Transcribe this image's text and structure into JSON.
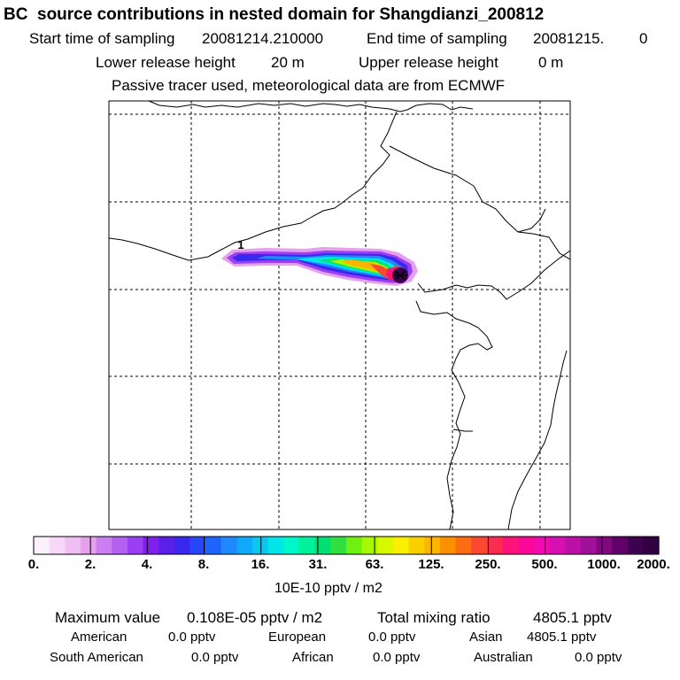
{
  "header": {
    "title": "BC  source contributions in nested domain for Shangdianzi_200812",
    "start_label": "Start time of sampling",
    "start_value": "20081214.210000",
    "end_label": "End time of sampling",
    "end_value": "20081215.",
    "end_suffix": "0",
    "lower_label": "Lower release height",
    "lower_value": "20 m",
    "upper_label": "Upper release height",
    "upper_value": "0 m",
    "tracer_note": "Passive tracer used, meteorological data are from ECMWF"
  },
  "map": {
    "marker_label": "1"
  },
  "colorbar": {
    "colors": [
      "#fcf0fc",
      "#f7d8f8",
      "#efbff3",
      "#e6a0ee",
      "#c97ff0",
      "#b460f2",
      "#9a3ff2",
      "#8020ee",
      "#5a20e8",
      "#3a28f0",
      "#2846f8",
      "#1e64fc",
      "#1e88fc",
      "#10a8f8",
      "#08c8f0",
      "#00e6e8",
      "#00f8c8",
      "#00f09c",
      "#00e070",
      "#30e040",
      "#70f010",
      "#a8f800",
      "#d8f800",
      "#f8f000",
      "#fcd000",
      "#fcb400",
      "#fc9000",
      "#fc6c10",
      "#fc4830",
      "#fc2c50",
      "#fc1478",
      "#fc0898",
      "#f00cb0",
      "#d810b0",
      "#bc10a8",
      "#a01098",
      "#800880",
      "#600068",
      "#400050",
      "#300040"
    ],
    "tick_labels": [
      "0.",
      "2.",
      "4.",
      "8.",
      "16.",
      "31.",
      "63.",
      "125.",
      "250.",
      "500.",
      "1000.",
      "2000."
    ],
    "unit": "10E-10 pptv / m2"
  },
  "footer": {
    "max_label": "Maximum value",
    "max_value": "0.108E-05 pptv / m2",
    "total_label": "Total mixing ratio",
    "total_value": "4805.1 pptv",
    "regions": [
      {
        "name": "American",
        "value": "0.0 pptv"
      },
      {
        "name": "European",
        "value": "0.0 pptv"
      },
      {
        "name": "Asian",
        "value": "4805.1 pptv"
      },
      {
        "name": "South American",
        "value": "0.0 pptv"
      },
      {
        "name": "African",
        "value": "0.0 pptv"
      },
      {
        "name": "Australian",
        "value": "0.0 pptv"
      }
    ]
  }
}
